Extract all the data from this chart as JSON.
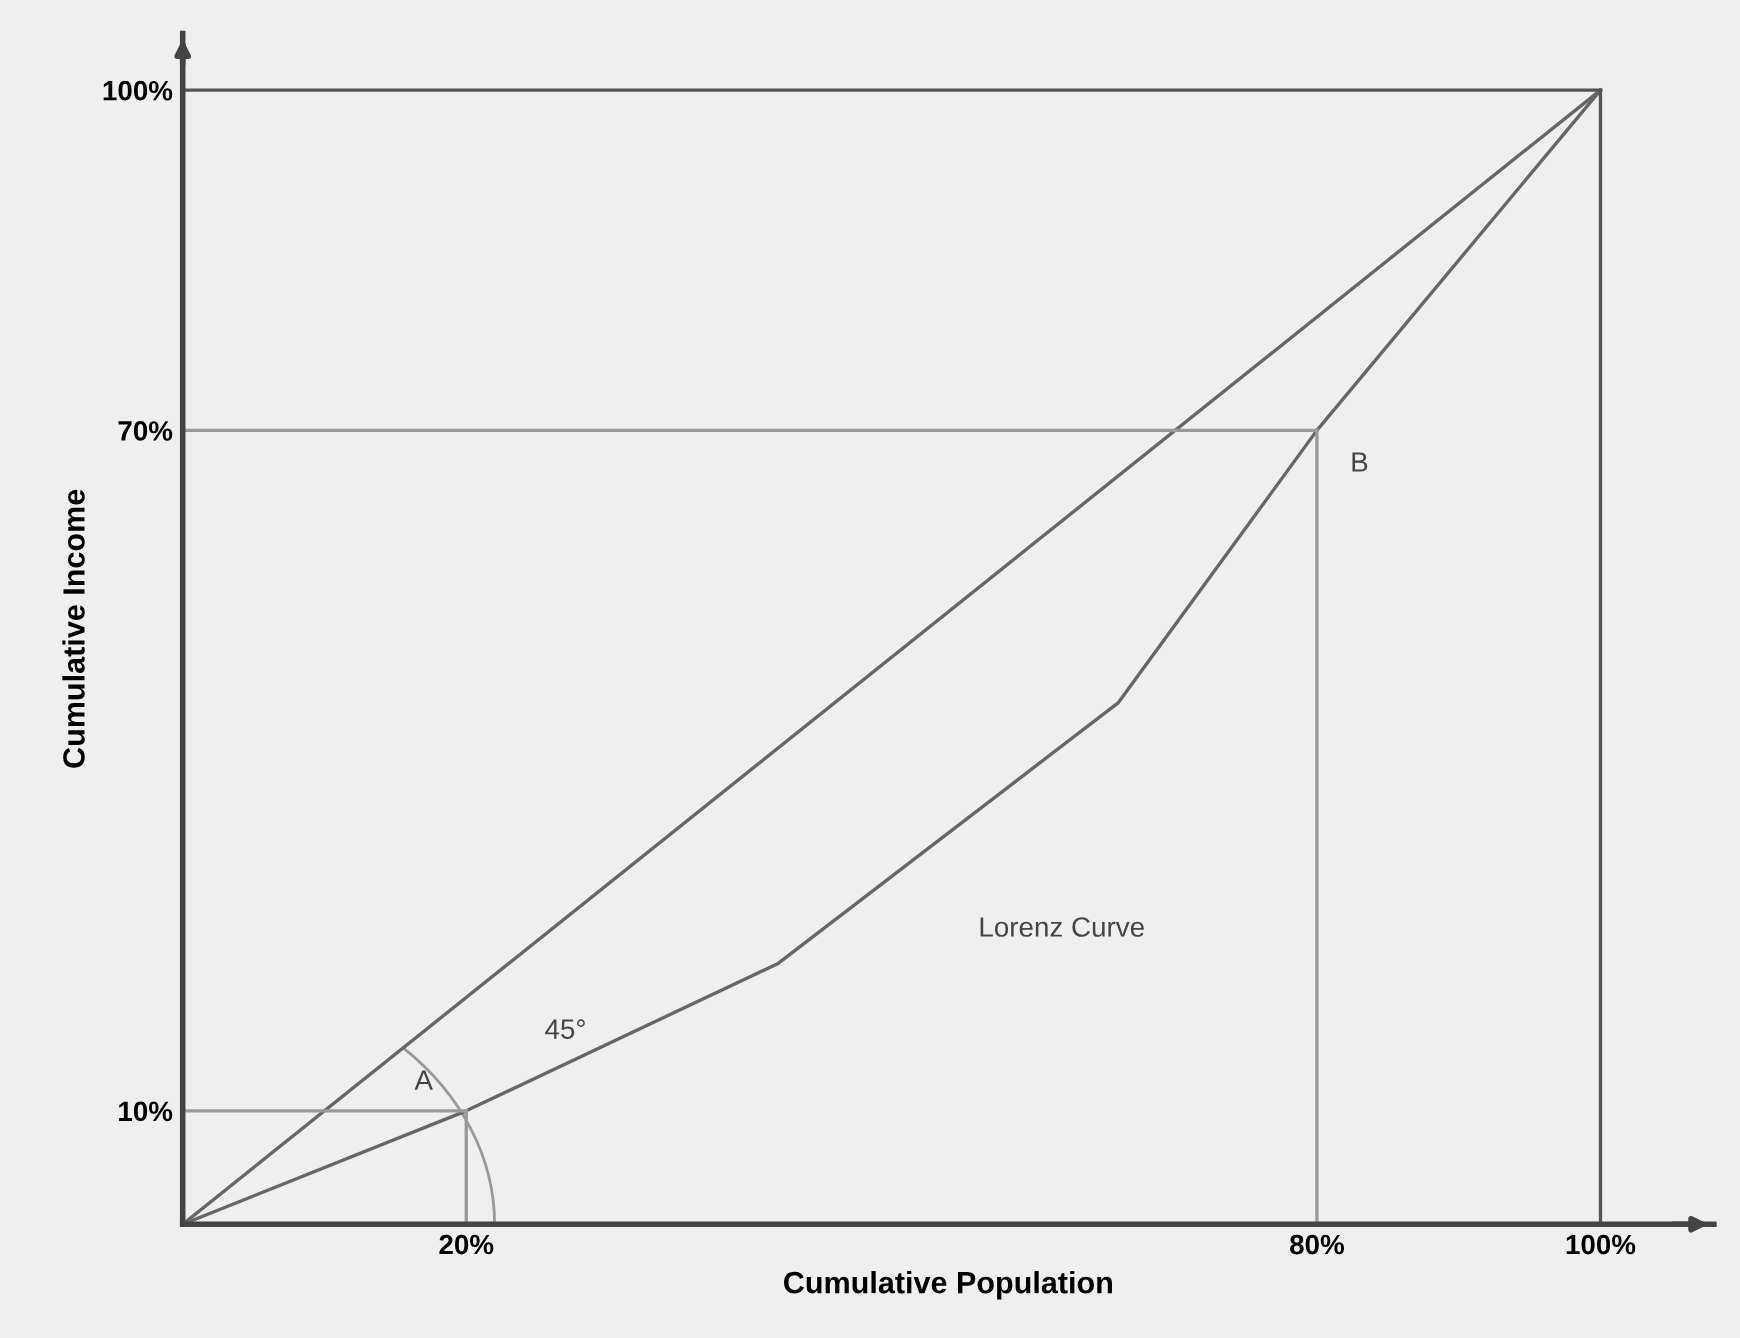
{
  "chart_data": {
    "type": "line",
    "xlabel": "Cumulative Population",
    "ylabel": "Cumulative Income",
    "xlim": [
      0,
      108
    ],
    "ylim": [
      0,
      105
    ],
    "xticks": [
      {
        "value": 20,
        "label": "20%"
      },
      {
        "value": 80,
        "label": "80%"
      },
      {
        "value": 100,
        "label": "100%"
      }
    ],
    "yticks": [
      {
        "value": 10,
        "label": "10%"
      },
      {
        "value": 70,
        "label": "70%"
      },
      {
        "value": 100,
        "label": "100%"
      }
    ],
    "grid": false,
    "marker": "none",
    "line_style": "solid",
    "series": [
      {
        "color": "#666666",
        "x": [
          0,
          100
        ],
        "values": [
          0,
          100
        ]
      },
      {
        "color": "#666666",
        "x": [
          0,
          20,
          42,
          66,
          80,
          100
        ],
        "values": [
          0,
          10,
          23,
          46,
          70,
          100
        ]
      },
      {
        "color": "#999999",
        "x": [
          0,
          20
        ],
        "values": [
          10,
          10
        ]
      },
      {
        "color": "#999999",
        "x": [
          0,
          80
        ],
        "values": [
          70,
          70
        ]
      },
      {
        "color": "#555555",
        "x": [
          0,
          100
        ],
        "values": [
          100,
          100
        ]
      },
      {
        "color": "#999999",
        "x": [
          80,
          80
        ],
        "values": [
          0,
          70
        ]
      },
      {
        "color": "#999999",
        "x": [
          20,
          20
        ],
        "values": [
          0,
          10
        ]
      },
      {
        "color": "#555555",
        "x": [
          100,
          100
        ],
        "values": [
          0,
          100
        ]
      }
    ],
    "annotations": [
      {
        "text": "A",
        "x": 20,
        "y": 10
      },
      {
        "text": "B",
        "x": 80,
        "y": 70
      },
      "Lorenz Curve",
      "45°"
    ]
  }
}
